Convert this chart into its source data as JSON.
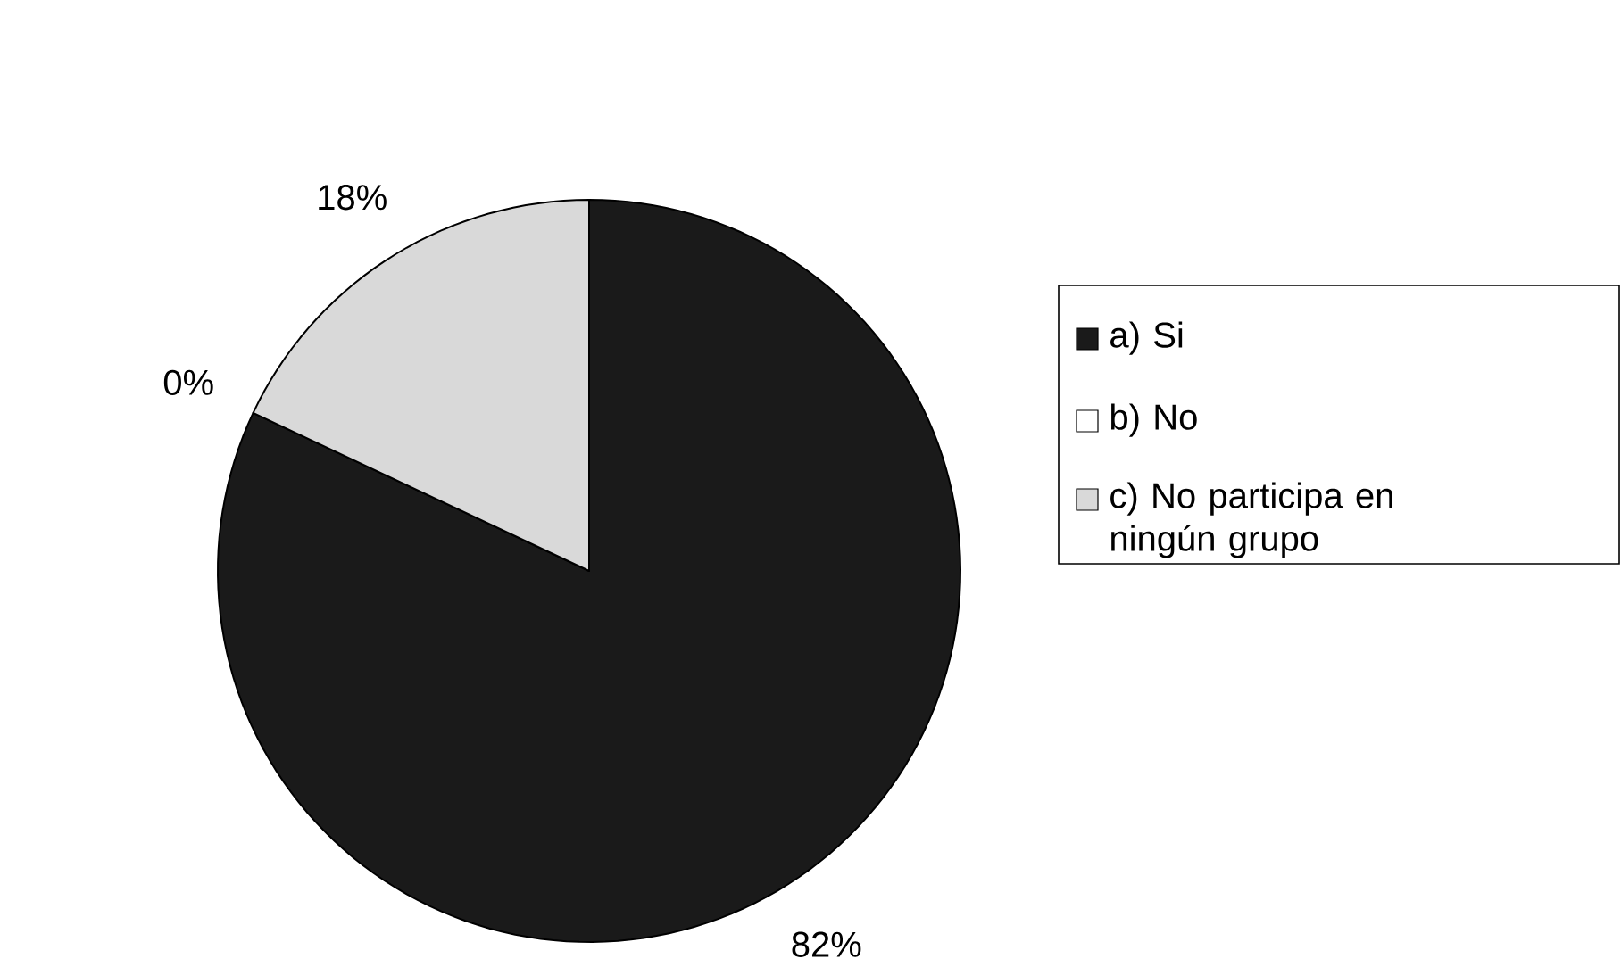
{
  "chart_data": {
    "type": "pie",
    "categories": [
      "a) Si",
      "b) No",
      "c) No participa en ningún grupo"
    ],
    "values": [
      82,
      0,
      18
    ],
    "value_labels": [
      "82%",
      "0%",
      "18%"
    ],
    "colors": [
      "#1a1a1a",
      "#ffffff",
      "#d9d9d9"
    ],
    "legend": "right"
  }
}
